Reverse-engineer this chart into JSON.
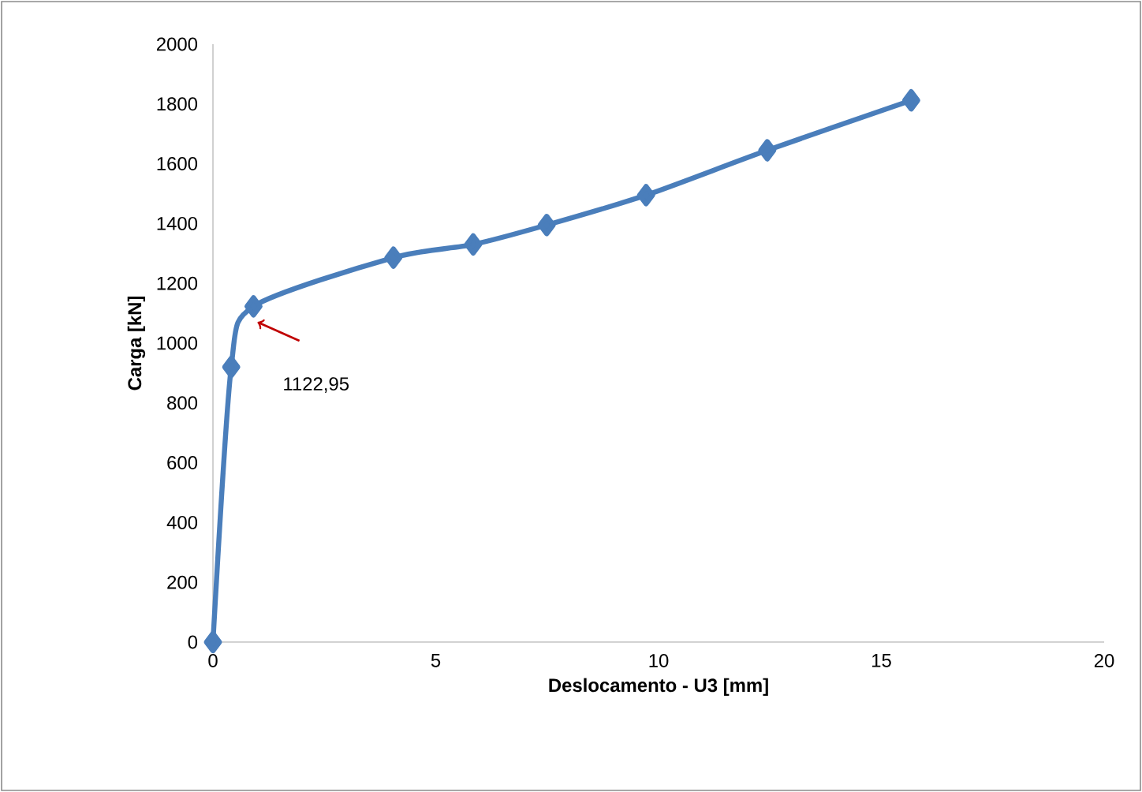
{
  "chart_data": {
    "type": "line",
    "xlabel": "Deslocamento - U3 [mm]",
    "ylabel": "Carga [kN]",
    "x": [
      0,
      0.41,
      0.91,
      4.05,
      5.84,
      7.49,
      9.72,
      12.44,
      15.67
    ],
    "series": [
      {
        "color": "#4a7ebb",
        "values": [
          0,
          920,
          1122.95,
          1286,
          1330,
          1395,
          1495,
          1645,
          1812
        ]
      }
    ],
    "xlim": [
      0,
      20
    ],
    "xticks": [
      0,
      5,
      10,
      15,
      20
    ],
    "ylim": [
      0,
      2000
    ],
    "yticks": [
      0,
      200,
      400,
      600,
      800,
      1000,
      1200,
      1400,
      1600,
      1800,
      2000
    ],
    "grid": false,
    "marker": "diamond",
    "line_style": "solid",
    "annotations": [
      "1122,95"
    ]
  }
}
